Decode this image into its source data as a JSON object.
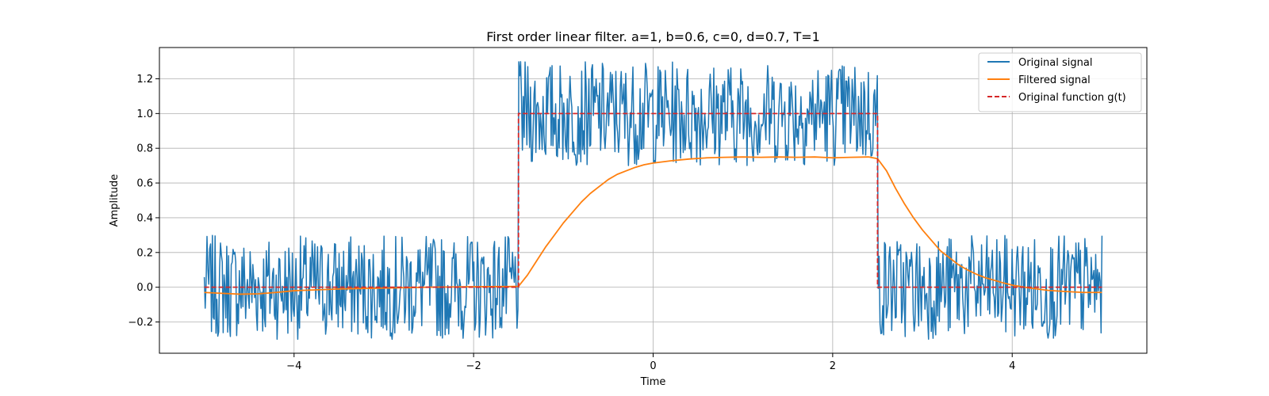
{
  "chart_data": {
    "type": "line",
    "title": "First order linear filter. a=1, b=0.6, c=0, d=0.7, T=1",
    "xlabel": "Time",
    "ylabel": "Amplitude",
    "xlim": [
      -5.5,
      5.5
    ],
    "ylim": [
      -0.38,
      1.38
    ],
    "xticks": [
      -4,
      -2,
      0,
      2,
      4
    ],
    "xtick_labels": [
      "−4",
      "−2",
      "0",
      "2",
      "4"
    ],
    "yticks": [
      -0.2,
      0.0,
      0.2,
      0.4,
      0.6,
      0.8,
      1.0,
      1.2
    ],
    "ytick_labels": [
      "−0.2",
      "0.0",
      "0.2",
      "0.4",
      "0.6",
      "0.8",
      "1.0",
      "1.2"
    ],
    "grid": true,
    "legend_position": "top-right",
    "series": [
      {
        "name": "Original signal",
        "color": "#1f77b4",
        "style": "solid",
        "noise_amplitude": 0.3,
        "x_start": -5,
        "x_end": 5,
        "n_points": 1000,
        "seed": 7
      },
      {
        "name": "Filtered signal",
        "color": "#ff7f0e",
        "style": "solid",
        "x": [
          -5,
          -4.8,
          -4.6,
          -4.4,
          -4.2,
          -4.0,
          -3.5,
          -3.0,
          -2.5,
          -2.0,
          -1.6,
          -1.5,
          -1.4,
          -1.3,
          -1.2,
          -1.1,
          -1.0,
          -0.9,
          -0.8,
          -0.7,
          -0.6,
          -0.5,
          -0.4,
          -0.3,
          -0.2,
          -0.1,
          0.0,
          0.2,
          0.4,
          0.6,
          0.8,
          1.0,
          1.2,
          1.4,
          1.6,
          1.8,
          2.0,
          2.2,
          2.4,
          2.5,
          2.6,
          2.7,
          2.8,
          2.9,
          3.0,
          3.1,
          3.2,
          3.3,
          3.4,
          3.5,
          3.6,
          3.7,
          3.8,
          3.9,
          4.0,
          4.2,
          4.4,
          4.6,
          4.8,
          5.0
        ],
        "values": [
          -0.03,
          -0.035,
          -0.04,
          -0.038,
          -0.03,
          -0.02,
          -0.01,
          -0.005,
          0.0,
          0.003,
          0.004,
          0.005,
          0.07,
          0.15,
          0.23,
          0.3,
          0.37,
          0.43,
          0.49,
          0.54,
          0.58,
          0.62,
          0.65,
          0.67,
          0.69,
          0.705,
          0.715,
          0.728,
          0.738,
          0.745,
          0.748,
          0.75,
          0.748,
          0.75,
          0.748,
          0.75,
          0.745,
          0.748,
          0.75,
          0.74,
          0.67,
          0.57,
          0.48,
          0.4,
          0.33,
          0.27,
          0.21,
          0.17,
          0.13,
          0.1,
          0.075,
          0.055,
          0.04,
          0.025,
          0.012,
          -0.005,
          -0.018,
          -0.025,
          -0.03,
          -0.03
        ]
      },
      {
        "name": "Original function g(t)",
        "color": "#d62728",
        "style": "dashed",
        "x": [
          -5,
          -1.5,
          -1.5,
          2.5,
          2.5,
          5
        ],
        "values": [
          0,
          0,
          1,
          1,
          0,
          0
        ]
      }
    ]
  }
}
